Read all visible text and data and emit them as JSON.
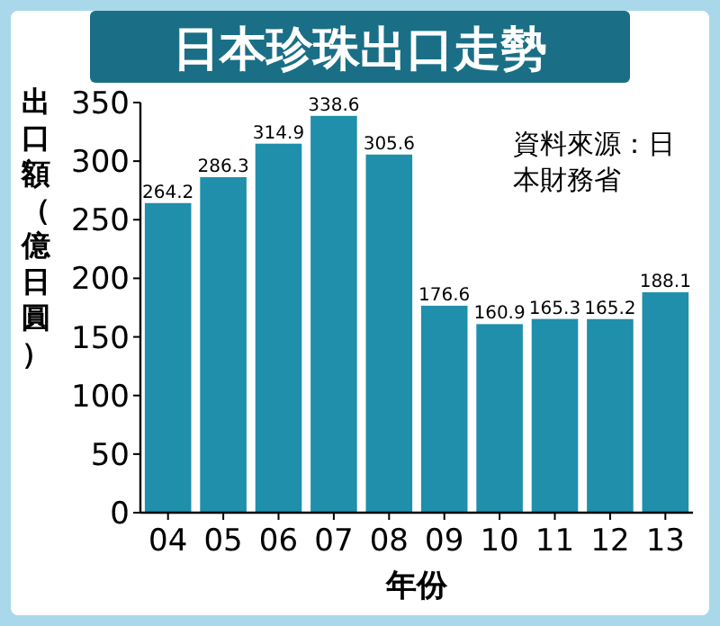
{
  "chart_data": {
    "type": "bar",
    "title": "日本珍珠出口走勢",
    "ylabel": "出口額（億日圓）",
    "xlabel": "年份",
    "annotations": [
      "資料來源：日本財務省"
    ],
    "categories": [
      "04",
      "05",
      "06",
      "07",
      "08",
      "09",
      "10",
      "11",
      "12",
      "13"
    ],
    "values": [
      264.2,
      286.3,
      314.9,
      338.6,
      305.6,
      176.6,
      160.9,
      165.3,
      165.2,
      188.1
    ],
    "color": "#1f8fab",
    "ylim": [
      0,
      350
    ],
    "yticks": [
      0,
      50,
      100,
      150,
      200,
      250,
      300,
      350
    ],
    "data_labels": true,
    "grid": false
  }
}
